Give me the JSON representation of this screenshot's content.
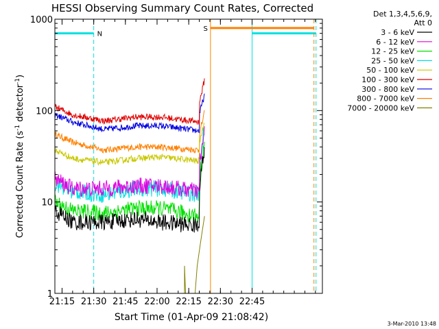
{
  "chart_data": {
    "type": "line",
    "title": "HESSI Observing Summary Count Rates, Corrected",
    "xlabel": "Start Time (01-Apr-09 21:08:42)",
    "ylabel_main": "Corrected Count Rate (s",
    "ylabel_sup1": "-1",
    "ylabel_mid": " detector",
    "ylabel_sup2": "-1",
    "ylabel_end": ")",
    "yscale": "log",
    "ylim": [
      1,
      1000
    ],
    "xlim_minutes": [
      21.116,
      22.783
    ],
    "x_ticks": [
      "21:15",
      "21:30",
      "21:45",
      "22:00",
      "22:15",
      "22:30",
      "22:45"
    ],
    "y_ticks": [
      "1",
      "10",
      "100",
      "1000"
    ],
    "legend_header": [
      "Det 1,3,4,5,6,9,",
      "Att 0"
    ],
    "series": [
      {
        "name": "3 - 6 keV",
        "color": "#000000",
        "points": [
          [
            21.117,
            8
          ],
          [
            21.2,
            6
          ],
          [
            21.35,
            6
          ],
          [
            21.5,
            6.5
          ],
          [
            21.62,
            6
          ],
          [
            21.8,
            5.5
          ],
          [
            22.0,
            5.5
          ],
          [
            22.1,
            5.5
          ],
          [
            22.15,
            6.5
          ],
          [
            22.2,
            15
          ],
          [
            22.225,
            40
          ]
        ]
      },
      {
        "name": "6 - 12 keV",
        "color": "#e000e0",
        "points": [
          [
            21.117,
            18
          ],
          [
            21.2,
            14
          ],
          [
            21.35,
            14
          ],
          [
            21.5,
            15
          ],
          [
            21.62,
            15
          ],
          [
            21.8,
            13
          ],
          [
            22.0,
            11.5
          ],
          [
            22.1,
            11
          ],
          [
            22.15,
            13
          ],
          [
            22.2,
            25
          ],
          [
            22.225,
            60
          ]
        ]
      },
      {
        "name": "12 - 25 keV",
        "color": "#00e000",
        "points": [
          [
            21.117,
            10
          ],
          [
            21.2,
            8
          ],
          [
            21.35,
            7.5
          ],
          [
            21.5,
            8.5
          ],
          [
            21.62,
            8.5
          ],
          [
            21.8,
            7
          ],
          [
            22.0,
            6.5
          ],
          [
            22.1,
            6.5
          ],
          [
            22.15,
            8
          ],
          [
            22.2,
            18
          ],
          [
            22.225,
            45
          ]
        ]
      },
      {
        "name": "25 - 50 keV",
        "color": "#00e0e0",
        "points": [
          [
            21.117,
            16
          ],
          [
            21.2,
            13
          ],
          [
            21.35,
            12
          ],
          [
            21.5,
            14
          ],
          [
            21.62,
            14
          ],
          [
            21.8,
            12
          ],
          [
            22.0,
            10.5
          ],
          [
            22.1,
            10
          ],
          [
            22.15,
            12
          ],
          [
            22.2,
            25
          ],
          [
            22.225,
            65
          ]
        ]
      },
      {
        "name": "50 - 100 keV",
        "color": "#c8c800",
        "points": [
          [
            21.117,
            37
          ],
          [
            21.2,
            30
          ],
          [
            21.35,
            27
          ],
          [
            21.5,
            30
          ],
          [
            21.62,
            31
          ],
          [
            21.8,
            28
          ],
          [
            22.0,
            24
          ],
          [
            22.1,
            24
          ],
          [
            22.15,
            27
          ],
          [
            22.2,
            45
          ],
          [
            22.225,
            75
          ]
        ]
      },
      {
        "name": "100 - 300 keV",
        "color": "#e00000",
        "points": [
          [
            21.117,
            110
          ],
          [
            21.2,
            90
          ],
          [
            21.35,
            77
          ],
          [
            21.5,
            85
          ],
          [
            21.62,
            85
          ],
          [
            21.8,
            75
          ],
          [
            22.0,
            68
          ],
          [
            22.1,
            67
          ],
          [
            22.15,
            75
          ],
          [
            22.2,
            120
          ],
          [
            22.225,
            220
          ]
        ]
      },
      {
        "name": "300 - 800 keV",
        "color": "#0000e0",
        "points": [
          [
            21.117,
            90
          ],
          [
            21.2,
            75
          ],
          [
            21.35,
            62
          ],
          [
            21.5,
            68
          ],
          [
            21.62,
            68
          ],
          [
            21.8,
            60
          ],
          [
            22.0,
            52
          ],
          [
            22.1,
            51
          ],
          [
            22.15,
            57
          ],
          [
            22.2,
            90
          ],
          [
            22.225,
            150
          ]
        ]
      },
      {
        "name": "800 - 7000 keV",
        "color": "#ff8000",
        "points": [
          [
            21.117,
            55
          ],
          [
            21.2,
            45
          ],
          [
            21.35,
            37
          ],
          [
            21.5,
            40
          ],
          [
            21.62,
            40
          ],
          [
            21.8,
            37
          ],
          [
            22.0,
            33
          ],
          [
            22.1,
            32
          ],
          [
            22.15,
            36
          ],
          [
            22.2,
            55
          ],
          [
            22.225,
            95
          ]
        ]
      },
      {
        "name": "7000 - 20000 keV",
        "color": "#808000",
        "points": [
          [
            21.73,
            1
          ],
          [
            21.73,
            2
          ],
          [
            21.735,
            1
          ],
          [
            22.18,
            1
          ],
          [
            22.19,
            2
          ],
          [
            22.205,
            3.5
          ],
          [
            22.215,
            5
          ],
          [
            22.225,
            7
          ]
        ]
      }
    ],
    "annotations": {
      "night_label": "N",
      "saa_label": "S",
      "night_color": "#00e0e0",
      "saa_color": "#ff8000",
      "night_level": 700,
      "saa_level": 800,
      "night_segments": [
        [
          21.116,
          21.3
        ],
        [
          22.45,
          22.753
        ]
      ],
      "night_start_times": [
        21.116,
        22.45
      ],
      "night_end_times": [
        21.3,
        22.753
      ],
      "saa_start_time": 22.253,
      "saa_end_time": 22.743
    },
    "grid": false
  },
  "footer": {
    "timestamp": "3-Mar-2010 13:48"
  }
}
